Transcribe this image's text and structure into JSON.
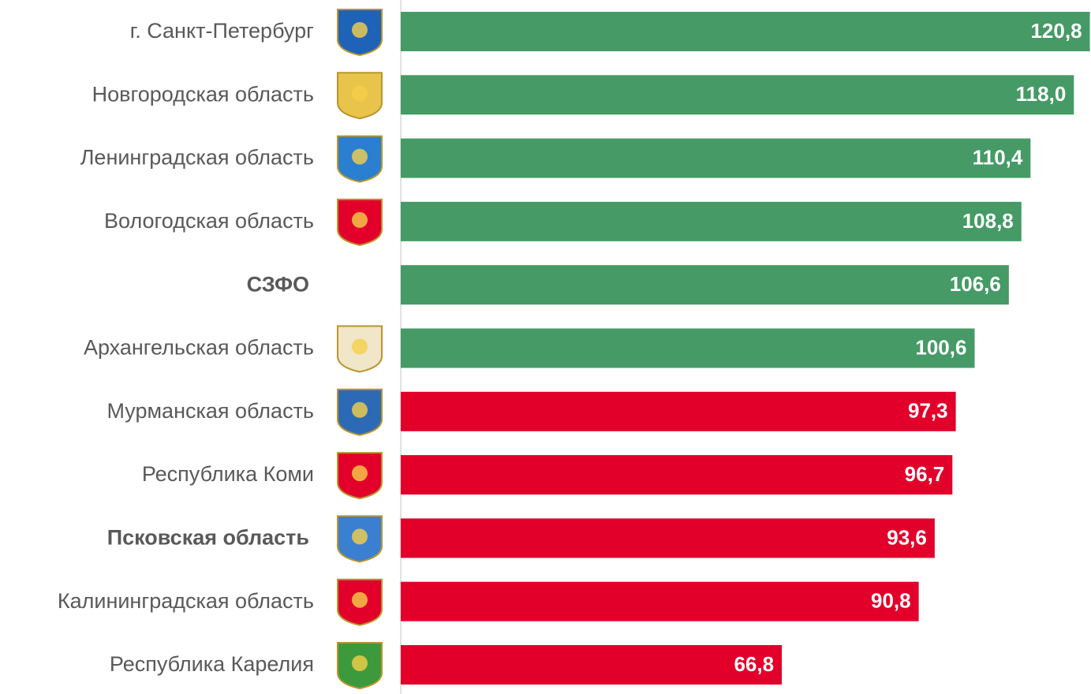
{
  "chart_data": {
    "type": "barh",
    "categories": [
      "г. Санкт-Петербург",
      "Новгородская область",
      "Ленинградская область",
      "Вологодская область",
      "СЗФО",
      "Архангельская область",
      "Мурманская область",
      "Республика Коми",
      "Псковская область",
      "Калининградская область",
      "Республика Карелия"
    ],
    "values": [
      120.8,
      118.0,
      110.4,
      108.8,
      106.6,
      100.6,
      97.3,
      96.7,
      93.6,
      90.8,
      66.8
    ],
    "value_labels": [
      "120,8",
      "118,0",
      "110,4",
      "108,8",
      "106,6",
      "100,6",
      "97,3",
      "96,7",
      "93,6",
      "90,8",
      "66,8"
    ],
    "colors": [
      "#459a65",
      "#459a65",
      "#459a65",
      "#459a65",
      "#459a65",
      "#459a65",
      "#e2002b",
      "#e2002b",
      "#e2002b",
      "#e2002b",
      "#e2002b"
    ],
    "bold": [
      false,
      false,
      false,
      false,
      true,
      false,
      false,
      false,
      true,
      false,
      false
    ],
    "xlim": [
      0,
      121
    ]
  }
}
